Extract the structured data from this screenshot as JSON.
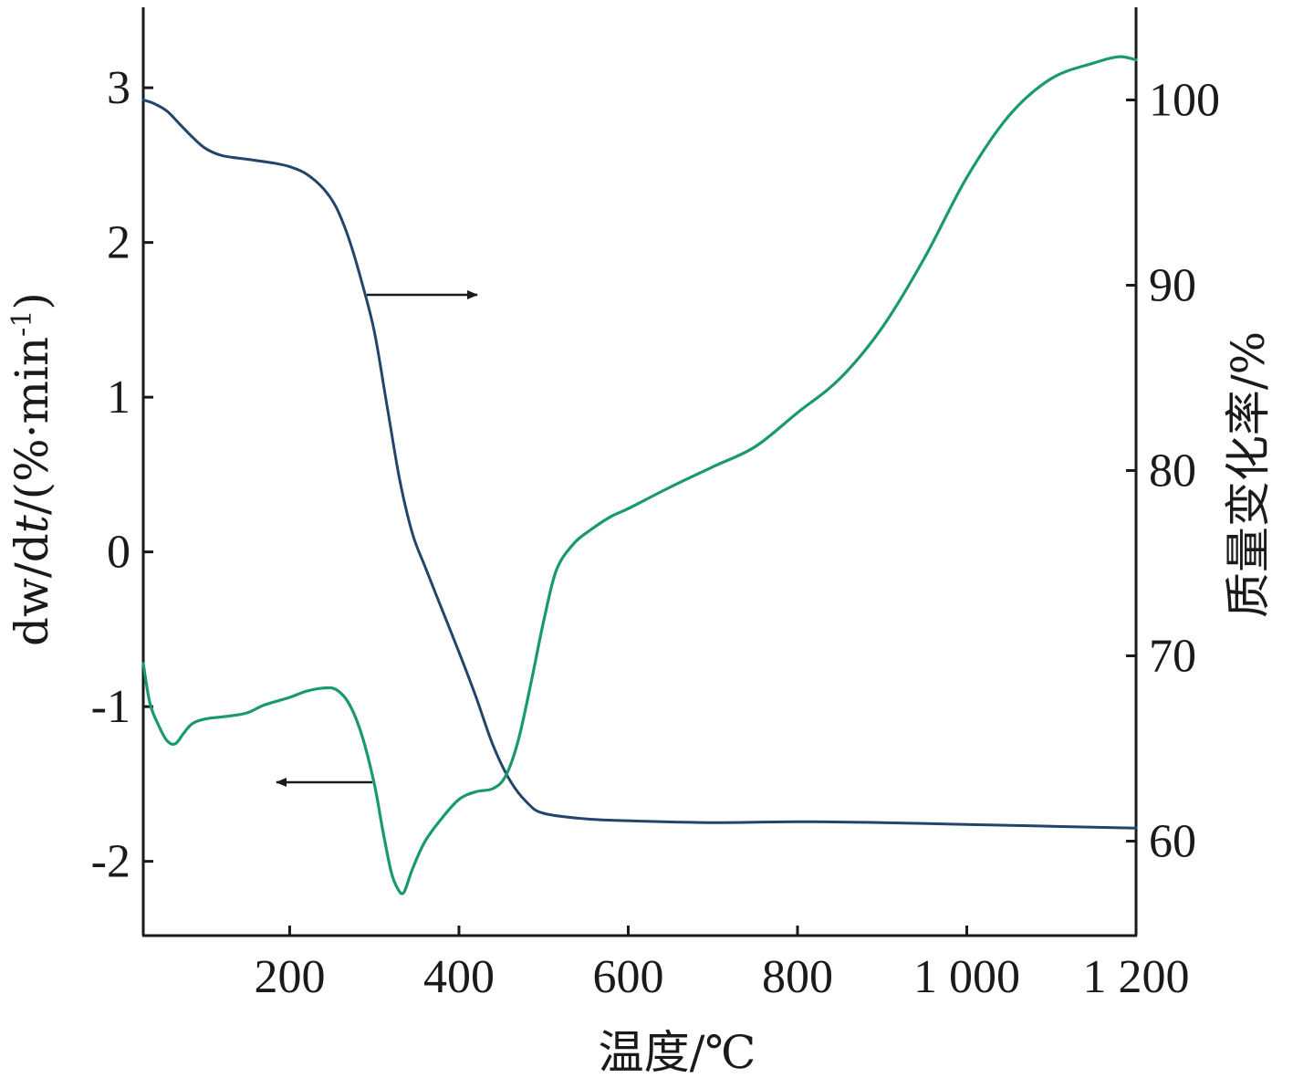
{
  "chart_data": {
    "type": "line",
    "xlabel": "温度/℃",
    "ylabel_left_parts": [
      "dw/d",
      "t",
      "/(%·min",
      "-1",
      ")"
    ],
    "ylabel_right": "质量变化率/%",
    "x_ticks": [
      {
        "value": 200,
        "label": "200"
      },
      {
        "value": 400,
        "label": "400"
      },
      {
        "value": 600,
        "label": "600"
      },
      {
        "value": 800,
        "label": "800"
      },
      {
        "value": 1000,
        "label": "1 000"
      },
      {
        "value": 1200,
        "label": "1 200"
      }
    ],
    "y_left_ticks": [
      {
        "value": 3,
        "label": "3"
      },
      {
        "value": 2,
        "label": "2"
      },
      {
        "value": 1,
        "label": "1"
      },
      {
        "value": 0,
        "label": "0"
      },
      {
        "value": -1,
        "label": "-1"
      },
      {
        "value": -2,
        "label": "-2"
      }
    ],
    "y_right_ticks": [
      {
        "value": 100,
        "label": "100"
      },
      {
        "value": 90,
        "label": "90"
      },
      {
        "value": 80,
        "label": "80"
      },
      {
        "value": 70,
        "label": "70"
      },
      {
        "value": 60,
        "label": "60"
      }
    ],
    "xlim": [
      27,
      1200
    ],
    "ylim_left": [
      -2.48,
      3.52
    ],
    "ylim_right": [
      54.9,
      105.0
    ],
    "grid": false,
    "colors": {
      "dtg": "#1a9a6a",
      "tg": "#23456b",
      "axis": "#1a1a1a"
    },
    "series": [
      {
        "id": "tg",
        "axis": "right",
        "points": [
          [
            27,
            100.0
          ],
          [
            40,
            99.8
          ],
          [
            55,
            99.4
          ],
          [
            70,
            98.7
          ],
          [
            85,
            98.0
          ],
          [
            100,
            97.4
          ],
          [
            120,
            97.0
          ],
          [
            150,
            96.8
          ],
          [
            180,
            96.6
          ],
          [
            200,
            96.4
          ],
          [
            220,
            96.0
          ],
          [
            240,
            95.2
          ],
          [
            255,
            94.2
          ],
          [
            270,
            92.5
          ],
          [
            285,
            90.2
          ],
          [
            300,
            87.5
          ],
          [
            315,
            83.5
          ],
          [
            330,
            79.5
          ],
          [
            345,
            76.6
          ],
          [
            360,
            74.8
          ],
          [
            380,
            72.5
          ],
          [
            400,
            70.2
          ],
          [
            420,
            67.8
          ],
          [
            440,
            65.2
          ],
          [
            460,
            63.3
          ],
          [
            480,
            62.1
          ],
          [
            500,
            61.5
          ],
          [
            550,
            61.2
          ],
          [
            600,
            61.1
          ],
          [
            700,
            61.0
          ],
          [
            800,
            61.05
          ],
          [
            900,
            61.0
          ],
          [
            1000,
            60.9
          ],
          [
            1100,
            60.8
          ],
          [
            1200,
            60.7
          ]
        ]
      },
      {
        "id": "dtg",
        "axis": "left",
        "points": [
          [
            27,
            -0.72
          ],
          [
            35,
            -0.98
          ],
          [
            45,
            -1.12
          ],
          [
            55,
            -1.22
          ],
          [
            65,
            -1.24
          ],
          [
            75,
            -1.17
          ],
          [
            85,
            -1.11
          ],
          [
            100,
            -1.08
          ],
          [
            130,
            -1.06
          ],
          [
            150,
            -1.04
          ],
          [
            170,
            -0.99
          ],
          [
            200,
            -0.94
          ],
          [
            220,
            -0.9
          ],
          [
            240,
            -0.88
          ],
          [
            255,
            -0.89
          ],
          [
            270,
            -0.98
          ],
          [
            285,
            -1.18
          ],
          [
            300,
            -1.5
          ],
          [
            310,
            -1.8
          ],
          [
            320,
            -2.07
          ],
          [
            328,
            -2.18
          ],
          [
            335,
            -2.2
          ],
          [
            345,
            -2.05
          ],
          [
            360,
            -1.87
          ],
          [
            380,
            -1.72
          ],
          [
            400,
            -1.6
          ],
          [
            420,
            -1.55
          ],
          [
            440,
            -1.53
          ],
          [
            455,
            -1.45
          ],
          [
            470,
            -1.22
          ],
          [
            485,
            -0.85
          ],
          [
            500,
            -0.45
          ],
          [
            515,
            -0.12
          ],
          [
            535,
            0.05
          ],
          [
            555,
            0.14
          ],
          [
            580,
            0.23
          ],
          [
            600,
            0.28
          ],
          [
            650,
            0.42
          ],
          [
            700,
            0.55
          ],
          [
            750,
            0.68
          ],
          [
            800,
            0.9
          ],
          [
            850,
            1.12
          ],
          [
            900,
            1.45
          ],
          [
            950,
            1.9
          ],
          [
            1000,
            2.42
          ],
          [
            1050,
            2.82
          ],
          [
            1100,
            3.06
          ],
          [
            1150,
            3.16
          ],
          [
            1180,
            3.2
          ],
          [
            1200,
            3.18
          ]
        ]
      }
    ],
    "annotations": [
      {
        "name": "arrow-tg-right",
        "points_to": "right-axis"
      },
      {
        "name": "arrow-dtg-left",
        "points_to": "left-axis"
      }
    ]
  }
}
